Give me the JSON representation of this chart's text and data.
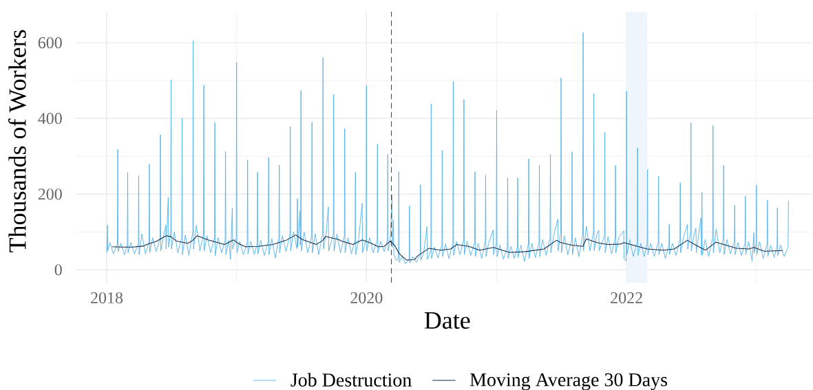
{
  "chart_data": {
    "type": "line",
    "xlabel": "Date",
    "ylabel": "Thousands of Workers",
    "xlim": [
      "2017-10-06",
      "2023-06-09"
    ],
    "ylim": [
      -34,
      682
    ],
    "xticks": [
      "2018",
      {
        "value": "2019",
        "label": null
      },
      "2020",
      {
        "value": "2021",
        "label": null
      },
      "2022",
      {
        "value": "2023",
        "label": null
      }
    ],
    "yticks": [
      0,
      {
        "value": 100,
        "label": null
      },
      200,
      {
        "value": 300,
        "label": null
      },
      400,
      {
        "value": 500,
        "label": null
      },
      600
    ],
    "grid": true,
    "legend": "bottom",
    "bands": [
      {
        "axis": "x",
        "from": "2022-01-01",
        "to": "2022-02-28",
        "color": "#eef5fd"
      }
    ],
    "ref_lines": [
      {
        "axis": "x",
        "value": "2020-03-11",
        "color": "#404040",
        "line_style": "dashed"
      }
    ],
    "series": [
      {
        "name": "Job Destruction",
        "color": "#56b4e9",
        "x": [
          "2018-01-01",
          "2018-01-03",
          "2018-01-04",
          "2018-01-10",
          "2018-01-20",
          "2018-01-31",
          "2018-02-01",
          "2018-02-02",
          "2018-02-10",
          "2018-02-20",
          "2018-02-28",
          "2018-03-01",
          "2018-03-02",
          "2018-03-10",
          "2018-03-20",
          "2018-03-31",
          "2018-04-01",
          "2018-04-02",
          "2018-04-10",
          "2018-04-20",
          "2018-04-30",
          "2018-05-01",
          "2018-05-02",
          "2018-05-10",
          "2018-05-20",
          "2018-05-31",
          "2018-06-01",
          "2018-06-02",
          "2018-06-10",
          "2018-06-16",
          "2018-06-17",
          "2018-06-23",
          "2018-06-24",
          "2018-06-30",
          "2018-07-01",
          "2018-07-02",
          "2018-07-10",
          "2018-07-20",
          "2018-07-31",
          "2018-08-01",
          "2018-08-02",
          "2018-08-10",
          "2018-08-20",
          "2018-08-31",
          "2018-09-01",
          "2018-09-02",
          "2018-09-10",
          "2018-09-20",
          "2018-09-30",
          "2018-10-01",
          "2018-10-02",
          "2018-10-10",
          "2018-10-20",
          "2018-10-31",
          "2018-11-01",
          "2018-11-02",
          "2018-11-10",
          "2018-11-20",
          "2018-11-30",
          "2018-12-01",
          "2018-12-02",
          "2018-12-10",
          "2018-12-15",
          "2018-12-20",
          "2018-12-21",
          "2018-12-31",
          "2019-01-01",
          "2019-01-02",
          "2019-01-10",
          "2019-01-20",
          "2019-01-31",
          "2019-02-01",
          "2019-02-02",
          "2019-02-10",
          "2019-02-20",
          "2019-02-28",
          "2019-03-01",
          "2019-03-02",
          "2019-03-10",
          "2019-03-20",
          "2019-03-31",
          "2019-04-01",
          "2019-04-02",
          "2019-04-10",
          "2019-04-20",
          "2019-04-30",
          "2019-05-01",
          "2019-05-02",
          "2019-05-10",
          "2019-05-20",
          "2019-05-31",
          "2019-06-01",
          "2019-06-02",
          "2019-06-10",
          "2019-06-20",
          "2019-06-21",
          "2019-06-22",
          "2019-06-28",
          "2019-06-29",
          "2019-06-30",
          "2019-07-01",
          "2019-07-02",
          "2019-07-10",
          "2019-07-20",
          "2019-07-31",
          "2019-08-01",
          "2019-08-02",
          "2019-08-10",
          "2019-08-20",
          "2019-08-31",
          "2019-09-01",
          "2019-09-02",
          "2019-09-10",
          "2019-09-16",
          "2019-09-17",
          "2019-09-30",
          "2019-10-01",
          "2019-10-02",
          "2019-10-10",
          "2019-10-20",
          "2019-10-31",
          "2019-11-01",
          "2019-11-02",
          "2019-11-10",
          "2019-11-20",
          "2019-11-30",
          "2019-12-01",
          "2019-12-02",
          "2019-12-10",
          "2019-12-20",
          "2019-12-21",
          "2019-12-31",
          "2020-01-01",
          "2020-01-02",
          "2020-01-10",
          "2020-01-20",
          "2020-01-31",
          "2020-02-01",
          "2020-02-02",
          "2020-02-10",
          "2020-02-20",
          "2020-02-29",
          "2020-03-01",
          "2020-03-02",
          "2020-03-08",
          "2020-03-13",
          "2020-03-14",
          "2020-03-17",
          "2020-03-18",
          "2020-03-25",
          "2020-03-31",
          "2020-04-01",
          "2020-04-02",
          "2020-04-10",
          "2020-04-20",
          "2020-04-30",
          "2020-05-01",
          "2020-05-02",
          "2020-05-10",
          "2020-05-20",
          "2020-05-31",
          "2020-06-01",
          "2020-06-02",
          "2020-06-10",
          "2020-06-19",
          "2020-06-20",
          "2020-06-30",
          "2020-07-01",
          "2020-07-02",
          "2020-07-10",
          "2020-07-20",
          "2020-07-31",
          "2020-08-01",
          "2020-08-02",
          "2020-08-10",
          "2020-08-20",
          "2020-08-31",
          "2020-09-01",
          "2020-09-02",
          "2020-09-10",
          "2020-09-20",
          "2020-09-30",
          "2020-10-01",
          "2020-10-02",
          "2020-10-10",
          "2020-10-20",
          "2020-10-31",
          "2020-11-01",
          "2020-11-02",
          "2020-11-10",
          "2020-11-20",
          "2020-11-30",
          "2020-12-01",
          "2020-12-02",
          "2020-12-10",
          "2020-12-22",
          "2020-12-23",
          "2020-12-31",
          "2021-01-01",
          "2021-01-02",
          "2021-01-10",
          "2021-01-20",
          "2021-01-31",
          "2021-02-01",
          "2021-02-02",
          "2021-02-10",
          "2021-02-20",
          "2021-02-28",
          "2021-03-01",
          "2021-03-02",
          "2021-03-10",
          "2021-03-20",
          "2021-03-31",
          "2021-04-01",
          "2021-04-02",
          "2021-04-10",
          "2021-04-20",
          "2021-04-30",
          "2021-05-01",
          "2021-05-02",
          "2021-05-10",
          "2021-05-20",
          "2021-05-31",
          "2021-06-01",
          "2021-06-02",
          "2021-06-10",
          "2021-06-22",
          "2021-06-23",
          "2021-06-30",
          "2021-07-01",
          "2021-07-02",
          "2021-07-10",
          "2021-07-20",
          "2021-07-31",
          "2021-08-01",
          "2021-08-02",
          "2021-08-10",
          "2021-08-20",
          "2021-08-31",
          "2021-09-01",
          "2021-09-02",
          "2021-09-10",
          "2021-09-20",
          "2021-09-30",
          "2021-10-01",
          "2021-10-02",
          "2021-10-10",
          "2021-10-15",
          "2021-10-16",
          "2021-10-31",
          "2021-11-01",
          "2021-11-02",
          "2021-11-10",
          "2021-11-20",
          "2021-11-30",
          "2021-12-01",
          "2021-12-02",
          "2021-12-10",
          "2021-12-24",
          "2021-12-25",
          "2021-12-31",
          "2022-01-01",
          "2022-01-02",
          "2022-01-10",
          "2022-01-20",
          "2022-01-31",
          "2022-02-01",
          "2022-02-02",
          "2022-02-10",
          "2022-02-20",
          "2022-02-28",
          "2022-03-01",
          "2022-03-02",
          "2022-03-10",
          "2022-03-20",
          "2022-03-31",
          "2022-04-01",
          "2022-04-02",
          "2022-04-10",
          "2022-04-20",
          "2022-04-30",
          "2022-05-01",
          "2022-05-02",
          "2022-05-10",
          "2022-05-20",
          "2022-05-31",
          "2022-06-01",
          "2022-06-02",
          "2022-06-10",
          "2022-06-21",
          "2022-06-22",
          "2022-06-30",
          "2022-07-01",
          "2022-07-02",
          "2022-07-10",
          "2022-07-15",
          "2022-07-16",
          "2022-07-29",
          "2022-07-30",
          "2022-08-01",
          "2022-08-02",
          "2022-08-10",
          "2022-08-20",
          "2022-08-31",
          "2022-09-01",
          "2022-09-02",
          "2022-09-10",
          "2022-09-20",
          "2022-09-30",
          "2022-10-01",
          "2022-10-02",
          "2022-10-10",
          "2022-10-20",
          "2022-10-31",
          "2022-11-01",
          "2022-11-02",
          "2022-11-10",
          "2022-11-20",
          "2022-11-30",
          "2022-12-01",
          "2022-12-02",
          "2022-12-10",
          "2022-12-20",
          "2022-12-25",
          "2022-12-26",
          "2022-12-31",
          "2023-01-01",
          "2023-01-02",
          "2023-01-10",
          "2023-01-20",
          "2023-01-31",
          "2023-02-01",
          "2023-02-02",
          "2023-02-10",
          "2023-02-20",
          "2023-02-28",
          "2023-03-01",
          "2023-03-02",
          "2023-03-10",
          "2023-03-20",
          "2023-03-31",
          "2023-04-01"
        ],
        "values": [
          45,
          118,
          50,
          72,
          42,
          68,
          318,
          48,
          70,
          40,
          66,
          257,
          45,
          72,
          42,
          70,
          249,
          40,
          95,
          42,
          75,
          279,
          45,
          85,
          48,
          82,
          357,
          50,
          90,
          118,
          55,
          191,
          60,
          100,
          502,
          55,
          100,
          45,
          85,
          401,
          40,
          92,
          38,
          100,
          605,
          55,
          118,
          50,
          95,
          488,
          50,
          90,
          45,
          85,
          389,
          37,
          85,
          45,
          80,
          313,
          40,
          78,
          28,
          163,
          55,
          85,
          548,
          45,
          75,
          40,
          72,
          290,
          42,
          75,
          40,
          70,
          258,
          42,
          78,
          38,
          75,
          297,
          40,
          82,
          31,
          85,
          277,
          45,
          90,
          48,
          95,
          378,
          50,
          100,
          55,
          188,
          60,
          155,
          65,
          105,
          474,
          50,
          100,
          45,
          90,
          390,
          45,
          95,
          40,
          100,
          561,
          55,
          100,
          166,
          50,
          95,
          463,
          50,
          95,
          45,
          90,
          373,
          45,
          85,
          42,
          80,
          258,
          40,
          80,
          176,
          45,
          80,
          487,
          50,
          85,
          45,
          78,
          332,
          45,
          75,
          48,
          80,
          305,
          50,
          80,
          198,
          60,
          131,
          40,
          25,
          30,
          259,
          20,
          35,
          16,
          30,
          169,
          18,
          35,
          20,
          40,
          225,
          25,
          45,
          114,
          28,
          50,
          438,
          30,
          60,
          32,
          65,
          315,
          35,
          68,
          30,
          70,
          498,
          38,
          75,
          40,
          80,
          450,
          40,
          75,
          38,
          72,
          259,
          35,
          70,
          30,
          75,
          250,
          35,
          72,
          105,
          40,
          70,
          422,
          35,
          65,
          28,
          60,
          243,
          30,
          62,
          30,
          60,
          243,
          32,
          65,
          22,
          68,
          293,
          30,
          70,
          32,
          72,
          276,
          35,
          80,
          38,
          85,
          305,
          45,
          90,
          134,
          50,
          100,
          507,
          45,
          90,
          40,
          80,
          312,
          40,
          85,
          35,
          95,
          627,
          50,
          115,
          50,
          100,
          465,
          50,
          95,
          104,
          50,
          90,
          363,
          45,
          88,
          42,
          85,
          276,
          45,
          85,
          103,
          30,
          23,
          472,
          40,
          80,
          35,
          75,
          322,
          38,
          70,
          35,
          72,
          265,
          40,
          70,
          35,
          72,
          247,
          40,
          70,
          30,
          65,
          120,
          40,
          70,
          38,
          80,
          230,
          45,
          85,
          120,
          55,
          100,
          389,
          50,
          95,
          110,
          45,
          137,
          40,
          205,
          38,
          80,
          35,
          85,
          381,
          45,
          108,
          45,
          85,
          276,
          40,
          80,
          42,
          75,
          171,
          40,
          72,
          38,
          70,
          195,
          40,
          75,
          23,
          98,
          45,
          70,
          224,
          40,
          75,
          30,
          68,
          184,
          35,
          65,
          33,
          62,
          164,
          38,
          65,
          35,
          60,
          183
        ]
      },
      {
        "name": "Moving Average 30 Days",
        "color": "#132b4a",
        "x": [
          "2018-01-16",
          "2018-02-15",
          "2018-03-15",
          "2018-04-15",
          "2018-04-23",
          "2018-05-20",
          "2018-06-17",
          "2018-06-30",
          "2018-07-16",
          "2018-08-17",
          "2018-08-31",
          "2018-09-12",
          "2018-10-13",
          "2018-11-28",
          "2018-12-24",
          "2019-01-05",
          "2019-01-26",
          "2019-03-01",
          "2019-04-13",
          "2019-05-20",
          "2019-06-16",
          "2019-07-05",
          "2019-08-13",
          "2019-09-01",
          "2019-09-08",
          "2019-10-15",
          "2019-10-23",
          "2019-11-24",
          "2019-12-20",
          "2020-01-15",
          "2020-02-03",
          "2020-02-20",
          "2020-03-08",
          "2020-03-20",
          "2020-04-02",
          "2020-04-22",
          "2020-05-15",
          "2020-05-24",
          "2020-06-25",
          "2020-07-27",
          "2020-08-25",
          "2020-09-11",
          "2020-10-15",
          "2020-11-14",
          "2020-12-23",
          "2021-02-06",
          "2021-03-23",
          "2021-05-14",
          "2021-06-18",
          "2021-07-01",
          "2021-08-01",
          "2021-08-12",
          "2021-08-31",
          "2021-09-10",
          "2021-10-10",
          "2021-11-10",
          "2021-12-15",
          "2021-12-25",
          "2022-01-20",
          "2022-02-28",
          "2022-04-14",
          "2022-05-15",
          "2022-06-21",
          "2022-07-15",
          "2022-08-11",
          "2022-09-09",
          "2022-11-06",
          "2022-12-10",
          "2022-12-25",
          "2023-01-23",
          "2023-03-16"
        ],
        "values": [
          61,
          60,
          60,
          63,
          67,
          75,
          90,
          88,
          76,
          70,
          78,
          90,
          79,
          67,
          79,
          70,
          61,
          62,
          67,
          78,
          92,
          80,
          67,
          78,
          88,
          80,
          76,
          67,
          79,
          70,
          61,
          62,
          76,
          65,
          43,
          26,
          27,
          37,
          57,
          52,
          55,
          67,
          62,
          52,
          59,
          46,
          48,
          55,
          78,
          72,
          65,
          64,
          62,
          82,
          72,
          67,
          68,
          72,
          65,
          55,
          52,
          55,
          78,
          65,
          52,
          73,
          57,
          55,
          59,
          49,
          51
        ]
      }
    ]
  }
}
